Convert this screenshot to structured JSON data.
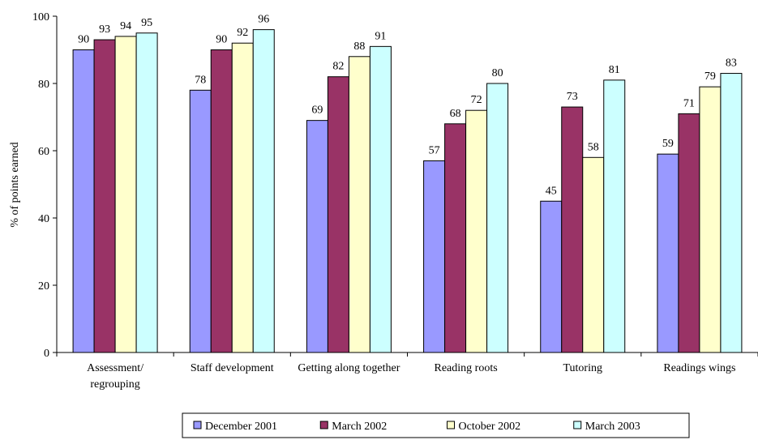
{
  "chart_data": {
    "type": "bar",
    "y_axis_label": "% of points earned",
    "categories": [
      "Assessment/ regrouping",
      "Staff development",
      "Getting along together",
      "Reading roots",
      "Tutoring",
      "Readings wings"
    ],
    "series": [
      {
        "name": "December 2001",
        "color": "#9999ff",
        "values": [
          90,
          78,
          69,
          57,
          45,
          59
        ]
      },
      {
        "name": "March 2002",
        "color": "#993366",
        "values": [
          93,
          90,
          82,
          68,
          73,
          71
        ]
      },
      {
        "name": "October 2002",
        "color": "#ffffcc",
        "values": [
          94,
          92,
          88,
          72,
          58,
          79
        ]
      },
      {
        "name": "March 2003",
        "color": "#ccffff",
        "values": [
          95,
          96,
          91,
          80,
          81,
          83
        ]
      }
    ],
    "ylim": [
      0,
      100
    ],
    "yticks": [
      0,
      20,
      40,
      60,
      80,
      100
    ],
    "grid": false,
    "legend": "bottom"
  }
}
